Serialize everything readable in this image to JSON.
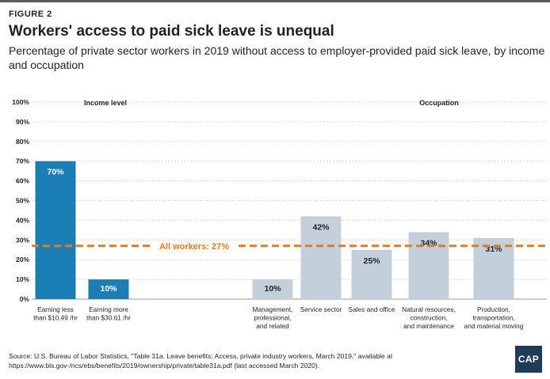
{
  "figure_label": "FIGURE 2",
  "title": "Workers' access to paid sick leave is unequal",
  "subtitle": "Percentage of private sector workers in 2019 without access to employer-provided paid sick leave, by income and occupation",
  "source": "Source: U.S. Bureau of Labor Statistics, \"Table 31a. Leave benefits: Access, private industry workers, March 2019,\" available at https://www.bls.gov-/ncs/ebs/benefits/2019/ownership/private/table31a.pdf (last accessed March 2020).",
  "logo_text": "CAP",
  "colors": {
    "income": "#1b7fb5",
    "occupation": "#c3d0dc",
    "reference": "#e07b29",
    "grid": "#d9d9d9",
    "axis": "#9a9a9a"
  },
  "chart_data": {
    "type": "bar",
    "ylim": [
      0,
      100
    ],
    "yticks": [
      "0%",
      "10%",
      "20%",
      "30%",
      "40%",
      "50%",
      "60%",
      "70%",
      "80%",
      "90%",
      "100%"
    ],
    "grid": true,
    "group_labels": [
      "Income level",
      "Occupation"
    ],
    "bars": [
      {
        "label": [
          "Earning less",
          "than $10.49 /hr"
        ],
        "value": 70,
        "value_label": "70%",
        "group": "income"
      },
      {
        "label": [
          "Earning more",
          "than $30.61 /hr"
        ],
        "value": 10,
        "value_label": "10%",
        "group": "income"
      },
      {
        "label": [
          "Management,",
          "professional,",
          "and related"
        ],
        "value": 10,
        "value_label": "10%",
        "group": "occupation"
      },
      {
        "label": [
          "Service sector"
        ],
        "value": 42,
        "value_label": "42%",
        "group": "occupation"
      },
      {
        "label": [
          "Sales and office"
        ],
        "value": 25,
        "value_label": "25%",
        "group": "occupation"
      },
      {
        "label": [
          "Natural resources,",
          "construction,",
          "and maintenance"
        ],
        "value": 34,
        "value_label": "34%",
        "group": "occupation"
      },
      {
        "label": [
          "Production,",
          "transportation,",
          "and material moving"
        ],
        "value": 31,
        "value_label": "31%",
        "group": "occupation"
      }
    ],
    "reference_line": {
      "value": 27,
      "label": "All workers: 27%"
    }
  }
}
